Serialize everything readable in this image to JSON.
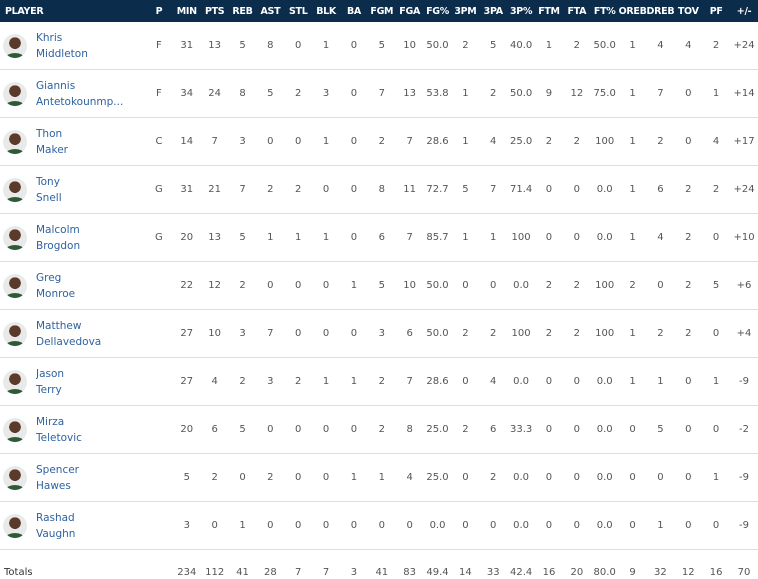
{
  "columns": [
    "PLAYER",
    "P",
    "MIN",
    "PTS",
    "REB",
    "AST",
    "STL",
    "BLK",
    "BA",
    "FGM",
    "FGA",
    "FG%",
    "3PM",
    "3PA",
    "3P%",
    "FTM",
    "FTA",
    "FT%",
    "OREB",
    "DREB",
    "TOV",
    "PF",
    "+/-"
  ],
  "players": [
    {
      "first": "Khris",
      "last": "Middleton",
      "stats": [
        "F",
        "31",
        "13",
        "5",
        "8",
        "0",
        "1",
        "0",
        "5",
        "10",
        "50.0",
        "2",
        "5",
        "40.0",
        "1",
        "2",
        "50.0",
        "1",
        "4",
        "4",
        "2",
        "+24"
      ]
    },
    {
      "first": "Giannis",
      "last": "Antetokounmp...",
      "stats": [
        "F",
        "34",
        "24",
        "8",
        "5",
        "2",
        "3",
        "0",
        "7",
        "13",
        "53.8",
        "1",
        "2",
        "50.0",
        "9",
        "12",
        "75.0",
        "1",
        "7",
        "0",
        "1",
        "+14"
      ]
    },
    {
      "first": "Thon",
      "last": "Maker",
      "stats": [
        "C",
        "14",
        "7",
        "3",
        "0",
        "0",
        "1",
        "0",
        "2",
        "7",
        "28.6",
        "1",
        "4",
        "25.0",
        "2",
        "2",
        "100",
        "1",
        "2",
        "0",
        "4",
        "+17"
      ]
    },
    {
      "first": "Tony",
      "last": "Snell",
      "stats": [
        "G",
        "31",
        "21",
        "7",
        "2",
        "2",
        "0",
        "0",
        "8",
        "11",
        "72.7",
        "5",
        "7",
        "71.4",
        "0",
        "0",
        "0.0",
        "1",
        "6",
        "2",
        "2",
        "+24"
      ]
    },
    {
      "first": "Malcolm",
      "last": "Brogdon",
      "stats": [
        "G",
        "20",
        "13",
        "5",
        "1",
        "1",
        "1",
        "0",
        "6",
        "7",
        "85.7",
        "1",
        "1",
        "100",
        "0",
        "0",
        "0.0",
        "1",
        "4",
        "2",
        "0",
        "+10"
      ]
    },
    {
      "first": "Greg",
      "last": "Monroe",
      "stats": [
        "",
        "22",
        "12",
        "2",
        "0",
        "0",
        "0",
        "1",
        "5",
        "10",
        "50.0",
        "0",
        "0",
        "0.0",
        "2",
        "2",
        "100",
        "2",
        "0",
        "2",
        "5",
        "+6"
      ]
    },
    {
      "first": "Matthew",
      "last": "Dellavedova",
      "stats": [
        "",
        "27",
        "10",
        "3",
        "7",
        "0",
        "0",
        "0",
        "3",
        "6",
        "50.0",
        "2",
        "2",
        "100",
        "2",
        "2",
        "100",
        "1",
        "2",
        "2",
        "0",
        "+4"
      ]
    },
    {
      "first": "Jason",
      "last": "Terry",
      "stats": [
        "",
        "27",
        "4",
        "2",
        "3",
        "2",
        "1",
        "1",
        "2",
        "7",
        "28.6",
        "0",
        "4",
        "0.0",
        "0",
        "0",
        "0.0",
        "1",
        "1",
        "0",
        "1",
        "-9"
      ]
    },
    {
      "first": "Mirza",
      "last": "Teletovic",
      "stats": [
        "",
        "20",
        "6",
        "5",
        "0",
        "0",
        "0",
        "0",
        "2",
        "8",
        "25.0",
        "2",
        "6",
        "33.3",
        "0",
        "0",
        "0.0",
        "0",
        "5",
        "0",
        "0",
        "-2"
      ]
    },
    {
      "first": "Spencer",
      "last": "Hawes",
      "stats": [
        "",
        "5",
        "2",
        "0",
        "2",
        "0",
        "0",
        "1",
        "1",
        "4",
        "25.0",
        "0",
        "2",
        "0.0",
        "0",
        "0",
        "0.0",
        "0",
        "0",
        "0",
        "1",
        "-9"
      ]
    },
    {
      "first": "Rashad",
      "last": "Vaughn",
      "stats": [
        "",
        "3",
        "0",
        "1",
        "0",
        "0",
        "0",
        "0",
        "0",
        "0",
        "0.0",
        "0",
        "0",
        "0.0",
        "0",
        "0",
        "0.0",
        "0",
        "1",
        "0",
        "0",
        "-9"
      ]
    }
  ],
  "totals": {
    "label": "Totals",
    "stats": [
      "",
      "234",
      "112",
      "41",
      "28",
      "7",
      "7",
      "3",
      "41",
      "83",
      "49.4",
      "14",
      "33",
      "42.4",
      "16",
      "20",
      "80.0",
      "9",
      "32",
      "12",
      "16",
      "70"
    ]
  },
  "colors": {
    "header_bg": "#0c2c4c",
    "link": "#2f62a0"
  }
}
